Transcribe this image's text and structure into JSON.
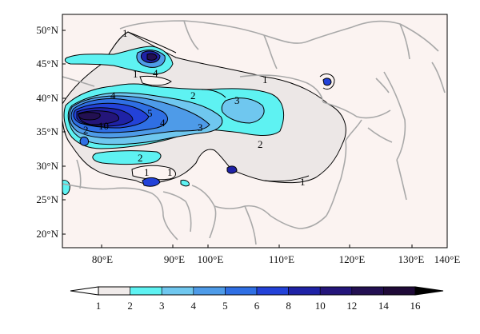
{
  "map": {
    "lat_ticks": [
      "50°N",
      "45°N",
      "40°N",
      "35°N",
      "30°N",
      "25°N",
      "20°N"
    ],
    "lon_ticks": [
      "80°E",
      "90°E",
      "100°E",
      "110°E",
      "120°E",
      "130°E",
      "140°E"
    ],
    "contour_labels": [
      "1",
      "1",
      "4",
      "1",
      "4",
      "2",
      "3",
      "5",
      "4",
      "3",
      "2",
      "10",
      "2",
      "2",
      "1",
      "1",
      "1"
    ]
  },
  "colorbar": {
    "levels": [
      "1",
      "2",
      "3",
      "4",
      "5",
      "6",
      "8",
      "10",
      "12",
      "14",
      "16"
    ],
    "colors": [
      "#f0ebea",
      "#5ef2f2",
      "#6fc7ef",
      "#4e9be8",
      "#2f6fe4",
      "#2342d8",
      "#1f22a6",
      "#24157a",
      "#231052",
      "#1f0a38"
    ]
  },
  "colors": {
    "ocean_bg": "#fbf3f1",
    "level1": "#ece7e6",
    "border": "#a9a9a9"
  }
}
